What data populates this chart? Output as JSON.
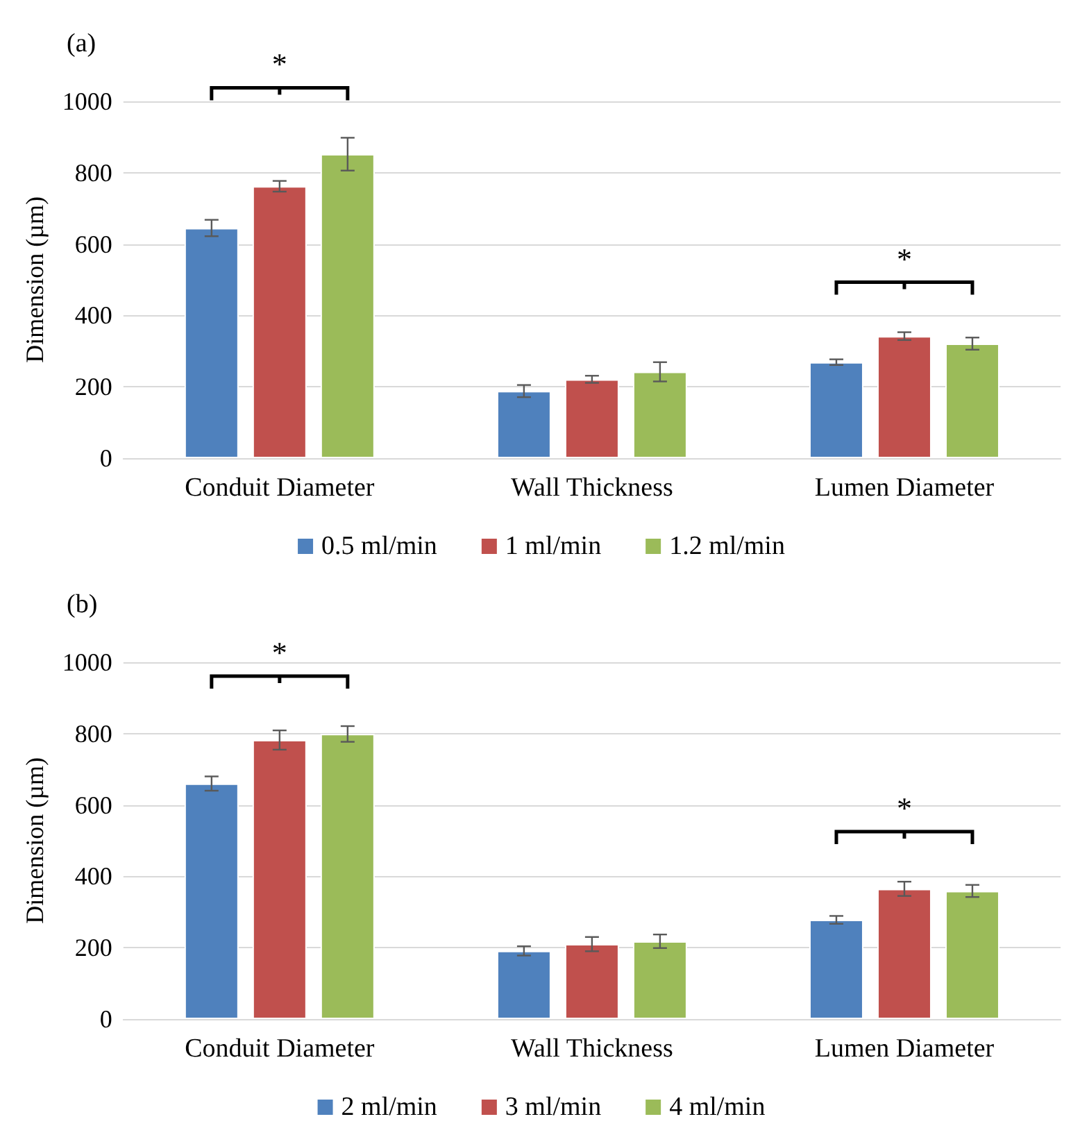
{
  "chart_data": [
    {
      "type": "bar",
      "ylabel": "Dimension (µm)",
      "categories": [
        "Conduit Diameter",
        "Wall Thickness",
        "Lumen Diameter"
      ],
      "ylim": [
        0,
        1000
      ],
      "yticks": [
        0,
        200,
        400,
        600,
        800,
        1000
      ],
      "grid": "y",
      "legend": "bottom",
      "series": [
        {
          "name": "0.5 ml/min",
          "color": "#4f81bd",
          "values": [
            645,
            188,
            269
          ],
          "errors": [
            23,
            17,
            8
          ]
        },
        {
          "name": "1 ml/min",
          "color": "#c0504d",
          "values": [
            762,
            221,
            342
          ],
          "errors": [
            15,
            10,
            11
          ]
        },
        {
          "name": "1.2 ml/min",
          "color": "#9bbb59",
          "values": [
            852,
            242,
            321
          ],
          "errors": [
            46,
            27,
            17
          ]
        }
      ],
      "annotations": [
        "(a)",
        {
          "text": "*",
          "x": "Conduit Diameter"
        },
        {
          "text": "*",
          "x": "Lumen Diameter"
        }
      ]
    },
    {
      "type": "bar",
      "ylabel": "Dimension (µm)",
      "categories": [
        "Conduit Diameter",
        "Wall Thickness",
        "Lumen Diameter"
      ],
      "ylim": [
        0,
        1000
      ],
      "yticks": [
        0,
        200,
        400,
        600,
        800,
        1000
      ],
      "grid": "y",
      "legend": "bottom",
      "series": [
        {
          "name": "2 ml/min",
          "color": "#4f81bd",
          "values": [
            660,
            191,
            278
          ],
          "errors": [
            20,
            13,
            11
          ]
        },
        {
          "name": "3 ml/min",
          "color": "#c0504d",
          "values": [
            782,
            210,
            365
          ],
          "errors": [
            27,
            20,
            20
          ]
        },
        {
          "name": "4 ml/min",
          "color": "#9bbb59",
          "values": [
            799,
            218,
            359
          ],
          "errors": [
            22,
            19,
            17
          ]
        }
      ],
      "annotations": [
        "(b)",
        {
          "text": "*",
          "x": "Conduit Diameter"
        },
        {
          "text": "*",
          "x": "Lumen Diameter"
        }
      ]
    }
  ]
}
